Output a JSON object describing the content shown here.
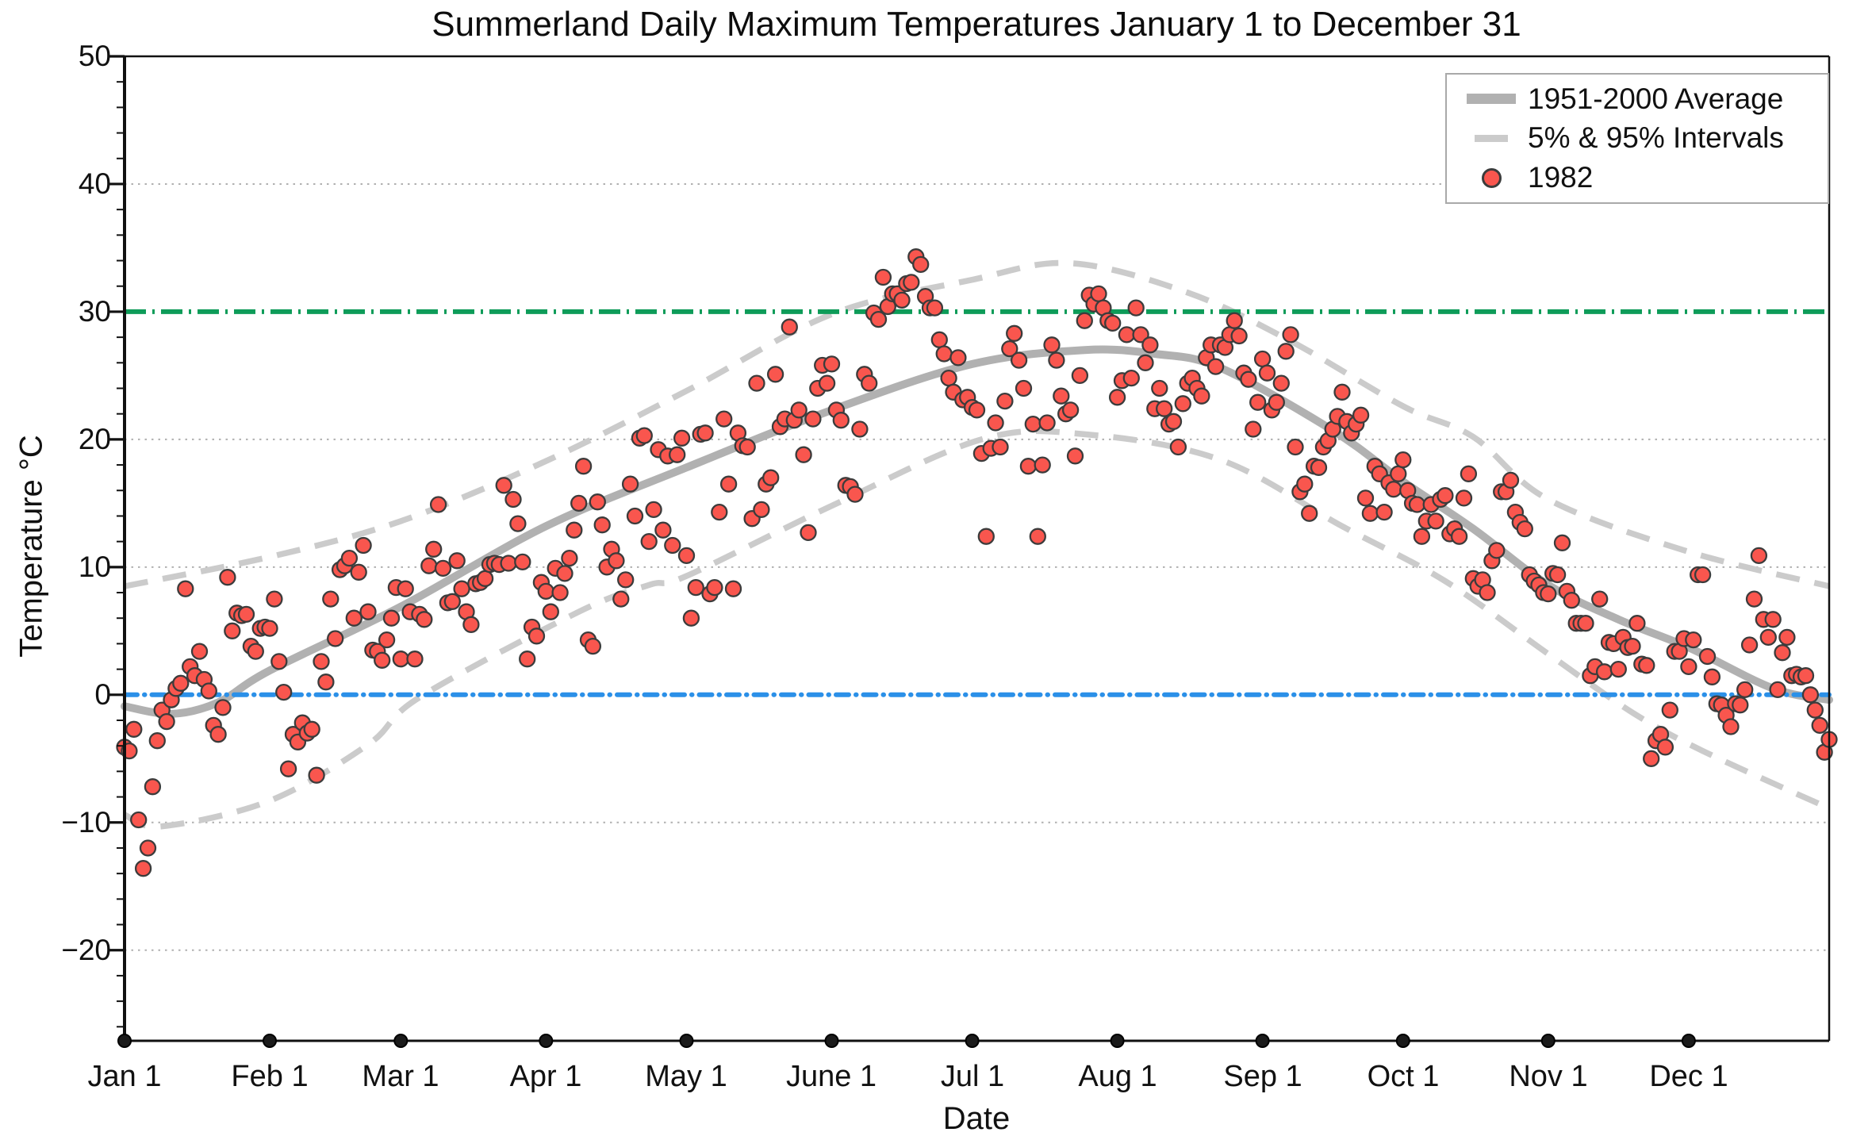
{
  "chart_data": {
    "type": "scatter",
    "title": "Summerland Daily Maximum Temperatures January 1 to December 31",
    "xlabel": "Date",
    "ylabel": "Temperature °C",
    "ylim": [
      -27.1,
      50
    ],
    "x_domain_days": 365,
    "grid": "dotted horizontal lines at multiples of 10",
    "y_axis": {
      "major_ticks": [
        -20,
        -10,
        0,
        10,
        20,
        30,
        40,
        50
      ],
      "tick_labels": [
        "50",
        "40",
        "30",
        "20",
        "10",
        "0",
        "−10",
        "−20"
      ],
      "minor_tick_step": 2,
      "gridline_values": [
        40,
        20,
        10,
        -10,
        -20
      ]
    },
    "x_axis": {
      "tick_labels": [
        "Jan 1",
        "Feb 1",
        "Mar 1",
        "Apr 1",
        "May 1",
        "June 1",
        "Jul 1",
        "Aug 1",
        "Sep 1",
        "Oct 1",
        "Nov 1",
        "Dec 1"
      ],
      "month_start_day_index": [
        0,
        31,
        59,
        90,
        120,
        151,
        181,
        212,
        243,
        273,
        304,
        334
      ],
      "marker": "black dot on axis at each month start"
    },
    "legend": {
      "position": "top-right",
      "items": [
        {
          "label": "1951-2000 Average",
          "swatch": "thick-gray-line"
        },
        {
          "label": "5% & 95% Intervals",
          "swatch": "dashed-gray-line"
        },
        {
          "label": "1982",
          "swatch": "red-dot"
        }
      ]
    },
    "reference_lines": [
      {
        "name": "30C-threshold",
        "y": 30,
        "color": "#0e9c59",
        "style": "dash-dot"
      },
      {
        "name": "0C-freezing",
        "y": 0,
        "color": "#2b90e8",
        "style": "dash-dot"
      }
    ],
    "colors": {
      "scatter_fill": "#f9564e",
      "scatter_edge": "#3c3c3c",
      "average_line": "#b1b1b1",
      "interval_line": "#cbcbcb",
      "gridline": "#b0b0b0",
      "axis": "#111111"
    },
    "series": {
      "average_1951_2000": {
        "name": "1951-2000 Average",
        "anchors_day_temp": [
          [
            0,
            -0.9
          ],
          [
            10,
            -1.5
          ],
          [
            20,
            -0.6
          ],
          [
            31,
            1.9
          ],
          [
            59,
            6.9
          ],
          [
            90,
            13.2
          ],
          [
            120,
            17.8
          ],
          [
            151,
            22.3
          ],
          [
            181,
            25.9
          ],
          [
            205,
            27.0
          ],
          [
            220,
            26.7
          ],
          [
            234,
            25.6
          ],
          [
            258,
            20.7
          ],
          [
            273,
            16.7
          ],
          [
            288,
            13.0
          ],
          [
            304,
            8.6
          ],
          [
            319,
            5.9
          ],
          [
            334,
            3.7
          ],
          [
            352,
            0.5
          ],
          [
            364,
            -0.4
          ]
        ]
      },
      "upper_95_interval": {
        "name": "95% Interval",
        "anchors_day_temp": [
          [
            0,
            8.5
          ],
          [
            31,
            10.8
          ],
          [
            59,
            13.6
          ],
          [
            90,
            18.3
          ],
          [
            120,
            23.8
          ],
          [
            151,
            29.8
          ],
          [
            181,
            32.5
          ],
          [
            202,
            33.8
          ],
          [
            227,
            31.5
          ],
          [
            249,
            27.7
          ],
          [
            273,
            22.6
          ],
          [
            288,
            20.2
          ],
          [
            304,
            15.3
          ],
          [
            334,
            11.2
          ],
          [
            364,
            8.5
          ]
        ]
      },
      "lower_5_interval": {
        "name": "5% Interval",
        "anchors_day_temp": [
          [
            0,
            -9.4
          ],
          [
            8,
            -10.3
          ],
          [
            31,
            -8.3
          ],
          [
            52,
            -3.9
          ],
          [
            63,
            -0.2
          ],
          [
            97,
            6.5
          ],
          [
            112,
            8.6
          ],
          [
            120,
            9.3
          ],
          [
            151,
            14.8
          ],
          [
            183,
            20.0
          ],
          [
            205,
            20.4
          ],
          [
            234,
            18.4
          ],
          [
            260,
            13.2
          ],
          [
            282,
            8.9
          ],
          [
            304,
            3.2
          ],
          [
            322,
            -1.4
          ],
          [
            337,
            -4.4
          ],
          [
            361,
            -8.4
          ],
          [
            364,
            -8.8
          ]
        ]
      },
      "scatter_1982": {
        "name": "1982",
        "daily_max_c": [
          -4.1,
          -4.4,
          -2.7,
          -9.8,
          -13.6,
          -12.0,
          -7.2,
          -3.6,
          -1.2,
          -2.1,
          -0.4,
          0.5,
          0.9,
          8.3,
          2.2,
          1.5,
          3.4,
          1.2,
          0.3,
          -2.4,
          -3.1,
          -1.0,
          9.2,
          5.0,
          6.4,
          6.2,
          6.3,
          3.8,
          3.4,
          5.2,
          5.3,
          5.2,
          7.5,
          2.6,
          0.2,
          -5.8,
          -3.1,
          -3.7,
          -2.2,
          -3.0,
          -2.7,
          -6.3,
          2.6,
          1.0,
          7.5,
          4.4,
          9.8,
          10.1,
          10.7,
          6.0,
          9.6,
          11.7,
          6.5,
          3.5,
          3.4,
          2.7,
          4.3,
          6.0,
          8.4,
          2.8,
          8.3,
          6.5,
          2.8,
          6.3,
          5.9,
          10.1,
          11.4,
          14.9,
          9.9,
          7.2,
          7.3,
          10.5,
          8.3,
          6.5,
          5.5,
          8.7,
          8.8,
          9.1,
          10.2,
          10.3,
          10.2,
          16.4,
          10.3,
          15.3,
          13.4,
          10.4,
          2.8,
          5.3,
          4.6,
          8.8,
          8.1,
          6.5,
          9.9,
          8.0,
          9.5,
          10.7,
          12.9,
          15.0,
          17.9,
          4.3,
          3.8,
          15.1,
          13.3,
          10.0,
          11.4,
          10.5,
          7.5,
          9.0,
          16.5,
          14.0,
          20.1,
          20.3,
          12.0,
          14.5,
          19.2,
          12.9,
          18.7,
          11.7,
          18.8,
          20.1,
          10.9,
          6.0,
          8.4,
          20.4,
          20.5,
          7.9,
          8.4,
          14.3,
          21.6,
          16.5,
          8.3,
          20.5,
          19.5,
          19.4,
          13.8,
          24.4,
          14.5,
          16.5,
          17.0,
          25.1,
          21.0,
          21.6,
          28.8,
          21.5,
          22.3,
          18.8,
          12.7,
          21.6,
          24.0,
          25.8,
          24.4,
          25.9,
          22.3,
          21.5,
          16.4,
          16.3,
          15.7,
          20.8,
          25.1,
          24.4,
          29.9,
          29.4,
          32.7,
          30.4,
          31.4,
          31.4,
          30.9,
          32.2,
          32.3,
          34.3,
          33.7,
          31.2,
          30.3,
          30.3,
          27.8,
          26.7,
          24.8,
          23.7,
          26.4,
          23.1,
          23.3,
          22.5,
          22.3,
          18.9,
          12.4,
          19.3,
          21.3,
          19.4,
          23.0,
          27.1,
          28.3,
          26.2,
          24.0,
          17.9,
          21.2,
          12.4,
          18.0,
          21.3,
          27.4,
          26.2,
          23.4,
          22.0,
          22.3,
          18.7,
          25.0,
          29.3,
          31.3,
          30.6,
          31.4,
          30.3,
          29.3,
          29.1,
          23.3,
          24.6,
          28.2,
          24.8,
          30.3,
          28.2,
          26.0,
          27.4,
          22.4,
          24.0,
          22.4,
          21.2,
          21.4,
          19.4,
          22.8,
          24.4,
          24.8,
          24.0,
          23.4,
          26.4,
          27.4,
          25.7,
          27.4,
          27.2,
          28.2,
          29.3,
          28.1,
          25.2,
          24.7,
          20.8,
          22.9,
          26.3,
          25.2,
          22.3,
          22.9,
          24.4,
          26.9,
          28.2,
          19.4,
          15.9,
          16.5,
          14.2,
          17.9,
          17.8,
          19.4,
          19.9,
          20.8,
          21.8,
          23.7,
          21.4,
          20.5,
          21.2,
          21.9,
          15.4,
          14.2,
          17.9,
          17.3,
          14.3,
          16.6,
          16.1,
          17.3,
          18.4,
          16.0,
          15.0,
          14.9,
          12.4,
          13.6,
          14.9,
          13.6,
          15.3,
          15.6,
          12.6,
          13.0,
          12.4,
          15.4,
          17.3,
          9.1,
          8.5,
          9.0,
          8.0,
          10.5,
          11.3,
          15.9,
          15.9,
          16.8,
          14.3,
          13.5,
          13.0,
          9.4,
          8.9,
          8.6,
          8.0,
          7.9,
          9.5,
          9.4,
          11.9,
          8.1,
          7.4,
          5.6,
          5.6,
          5.6,
          1.5,
          2.2,
          7.5,
          1.8,
          4.1,
          4.0,
          2.0,
          4.5,
          3.7,
          3.8,
          5.6,
          2.4,
          2.3,
          -5.0,
          -3.6,
          -3.1,
          -4.1,
          -1.2,
          3.4,
          3.4,
          4.4,
          2.2,
          4.3,
          9.4,
          9.4,
          3.0,
          1.4,
          -0.7,
          -0.8,
          -1.6,
          -2.5,
          -0.7,
          -0.8,
          0.4,
          3.9,
          7.5,
          10.9,
          5.9,
          4.5,
          5.9,
          0.4,
          3.3,
          4.5,
          1.5,
          1.6,
          1.4,
          1.5,
          0.0,
          -1.2,
          -2.4,
          -4.5,
          -3.5
        ]
      }
    }
  }
}
